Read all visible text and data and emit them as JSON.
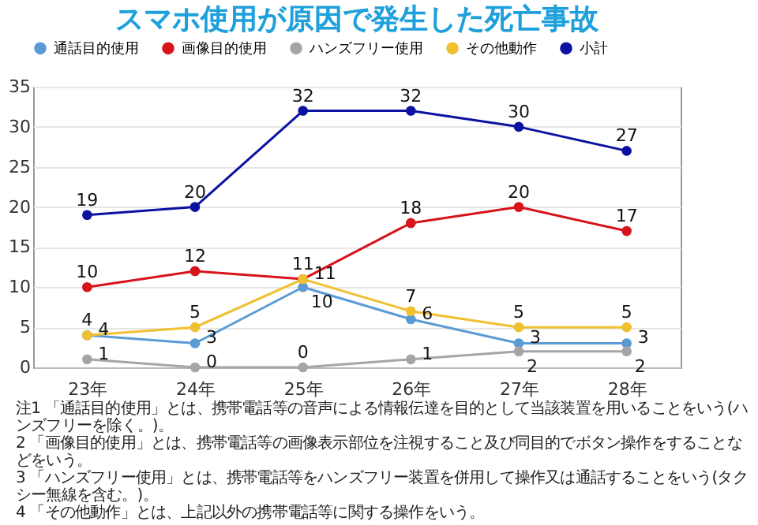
{
  "chart_data": {
    "type": "line",
    "title": "スマホ使用が原因で発生した死亡事故",
    "categories": [
      "23年",
      "24年",
      "25年",
      "26年",
      "27年",
      "28年"
    ],
    "series": [
      {
        "name": "通話目的使用",
        "color": "#5b9bd5",
        "values": [
          4,
          3,
          10,
          6,
          3,
          3
        ]
      },
      {
        "name": "画像目的使用",
        "color": "#d7141b",
        "values": [
          10,
          12,
          11,
          18,
          20,
          17
        ]
      },
      {
        "name": "ハンズフリー使用",
        "color": "#a5a5a5",
        "values": [
          1,
          0,
          0,
          1,
          2,
          2
        ]
      },
      {
        "name": "その他動作",
        "color": "#f0c030",
        "values": [
          4,
          5,
          11,
          7,
          5,
          5
        ]
      },
      {
        "name": "小計",
        "color": "#0c12a0",
        "values": [
          19,
          20,
          32,
          32,
          30,
          27
        ]
      }
    ],
    "ylim": [
      0,
      35
    ],
    "yticks": [
      0,
      5,
      10,
      15,
      20,
      25,
      30,
      35
    ],
    "grid": "y",
    "legend": "top",
    "marker": "circle",
    "line_style": "solid",
    "data_labels": true,
    "annotations": [
      "注1 「通話目的使用」とは、携帯電話等の音声による情報伝達を目的として当該装置を用いることをいう(ハンズフリーを除く。)。",
      "2 「画像目的使用」とは、携帯電話等の画像表示部位を注視すること及び同目的でボタン操作をすることなどをいう。",
      "3 「ハンズフリー使用」とは、携帯電話等をハンズフリー装置を併用して操作又は通話することをいう(タクシー無線を含む。)。",
      "4 「その他動作」とは、上記以外の携帯電話等に関する操作をいう。"
    ]
  }
}
